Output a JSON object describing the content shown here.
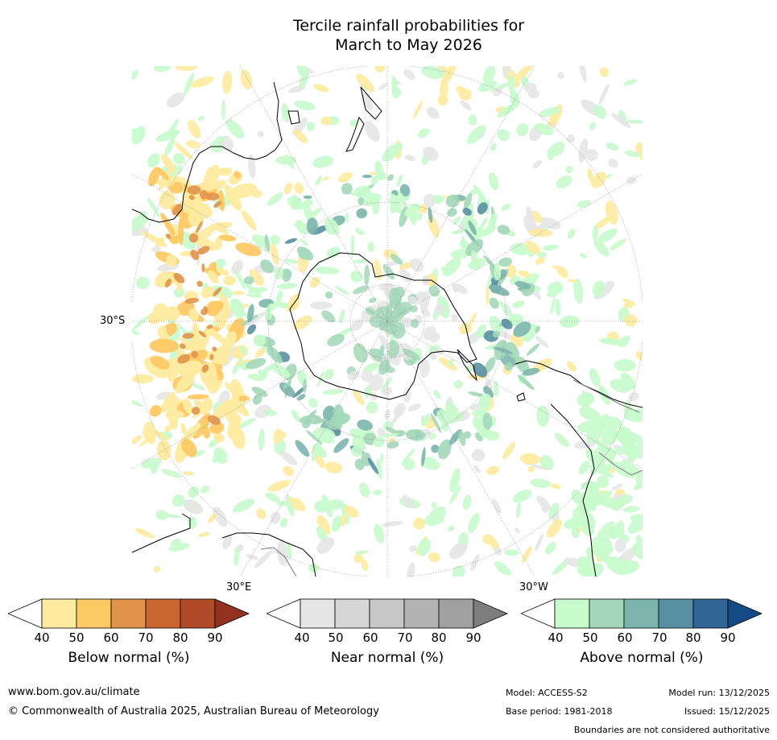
{
  "title": {
    "line1": "Tercile rainfall probabilities for",
    "line2": "March to May 2026"
  },
  "map": {
    "labels": {
      "lat_30s": "30°S",
      "lon_30e": "30°E",
      "lon_30w": "30°W"
    },
    "colors": {
      "ocean_bg": "#ffffff",
      "coast": "#000000"
    }
  },
  "colorbars": [
    {
      "id": "below",
      "label": "Below normal (%)",
      "ticks": [
        "40",
        "50",
        "60",
        "70",
        "80",
        "90"
      ],
      "colors": [
        "#ffffff",
        "#feeba0",
        "#fec964",
        "#e1934a",
        "#c96632",
        "#b04b28",
        "#93321e"
      ]
    },
    {
      "id": "near",
      "label": "Near normal (%)",
      "ticks": [
        "40",
        "50",
        "60",
        "70",
        "80",
        "90"
      ],
      "colors": [
        "#ffffff",
        "#e5e5e5",
        "#d6d6d6",
        "#c7c7c7",
        "#b3b3b3",
        "#a0a0a0",
        "#7d7d7d"
      ]
    },
    {
      "id": "above",
      "label": "Above normal (%)",
      "ticks": [
        "40",
        "50",
        "60",
        "70",
        "80",
        "90"
      ],
      "colors": [
        "#ffffff",
        "#c8fbcc",
        "#a3d7b9",
        "#7cb5ad",
        "#5990a1",
        "#316596",
        "#144b85"
      ]
    }
  ],
  "footer": {
    "website": "www.bom.gov.au/climate",
    "copyright": "© Commonwealth of Australia 2025, Australian Bureau of Meteorology",
    "model": "Model: ACCESS-S2",
    "base_period": "Base period: 1981-2018",
    "model_run": "Model run: 13/12/2025",
    "issued": "Issued: 15/12/2025",
    "disclaimer": "Boundaries are not considered authoritative"
  }
}
